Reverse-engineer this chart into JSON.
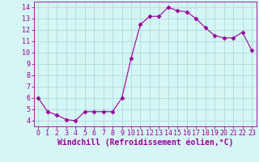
{
  "x": [
    0,
    1,
    2,
    3,
    4,
    5,
    6,
    7,
    8,
    9,
    10,
    11,
    12,
    13,
    14,
    15,
    16,
    17,
    18,
    19,
    20,
    21,
    22,
    23
  ],
  "y": [
    6.0,
    4.8,
    4.5,
    4.1,
    4.0,
    4.8,
    4.8,
    4.8,
    4.8,
    6.0,
    9.5,
    12.5,
    13.2,
    13.2,
    14.0,
    13.7,
    13.6,
    13.0,
    12.2,
    11.5,
    11.3,
    11.3,
    11.8,
    10.2
  ],
  "line_color": "#990099",
  "marker": "D",
  "marker_size": 2.5,
  "bg_color": "#d6f5f5",
  "grid_color": "#aadddd",
  "xlabel": "Windchill (Refroidissement éolien,°C)",
  "xlim": [
    -0.5,
    23.5
  ],
  "ylim": [
    3.5,
    14.5
  ],
  "yticks": [
    4,
    5,
    6,
    7,
    8,
    9,
    10,
    11,
    12,
    13,
    14
  ],
  "xticks": [
    0,
    1,
    2,
    3,
    4,
    5,
    6,
    7,
    8,
    9,
    10,
    11,
    12,
    13,
    14,
    15,
    16,
    17,
    18,
    19,
    20,
    21,
    22,
    23
  ],
  "tick_label_fontsize": 6,
  "xlabel_fontsize": 7
}
